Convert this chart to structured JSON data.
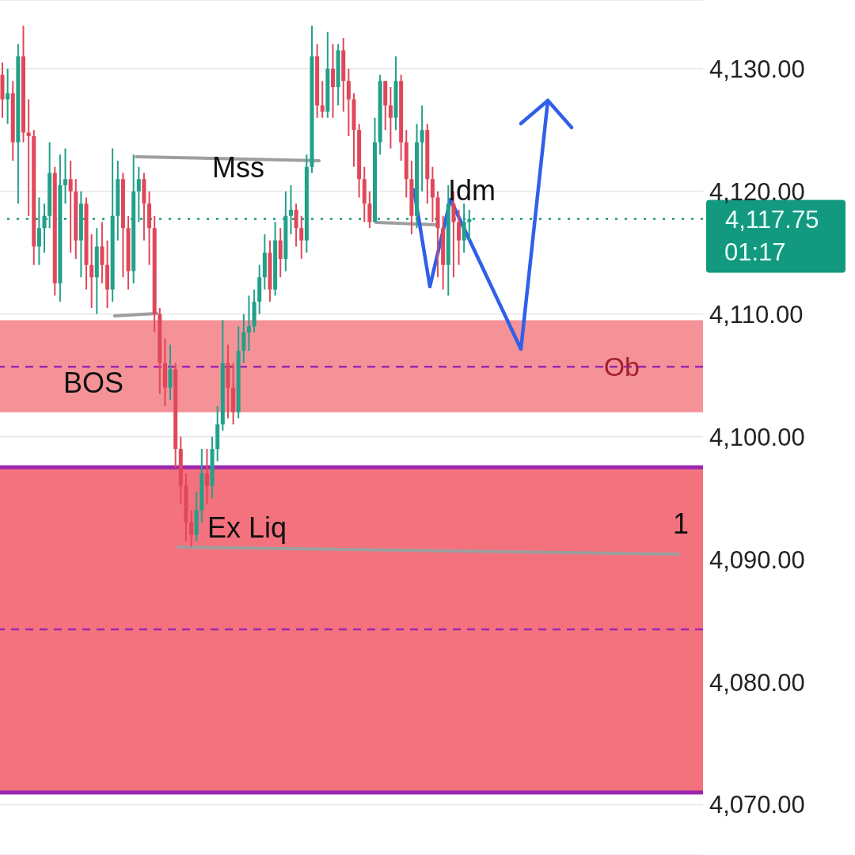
{
  "chart_data": {
    "type": "candlestick",
    "categories": [
      null,
      null,
      null,
      null,
      null,
      null,
      null,
      null,
      null,
      null,
      null,
      null,
      null,
      null,
      null,
      null,
      null,
      null,
      null,
      null,
      null,
      null,
      null,
      null,
      null,
      null,
      null,
      null,
      null,
      null,
      null,
      null,
      null,
      null,
      null,
      null,
      null,
      null,
      null,
      null,
      null,
      null,
      null,
      null,
      null,
      null,
      null,
      null,
      null,
      null,
      null,
      null,
      null,
      null,
      null,
      null,
      null,
      null,
      null,
      null,
      null,
      null,
      null,
      null,
      null,
      null,
      null,
      null,
      null,
      null,
      null,
      null,
      null,
      null,
      null,
      null,
      null,
      null,
      null,
      null,
      null,
      null,
      null,
      null,
      null,
      null,
      null,
      null,
      null,
      null,
      null,
      null,
      null,
      null,
      null,
      null,
      null,
      null,
      null,
      null,
      null,
      null,
      null,
      null,
      null,
      null,
      null,
      null,
      null,
      null,
      null,
      null,
      null,
      null,
      null,
      null,
      null,
      null,
      null,
      null,
      null,
      null,
      null,
      null,
      null,
      null,
      null,
      null,
      null,
      null,
      null,
      null,
      null,
      null
    ],
    "tick_labels": "y",
    "ohlc": [
      [
        4129.5,
        4130.5,
        4126,
        4127.5
      ],
      [
        4127.5,
        4130,
        4125.5,
        4128
      ],
      [
        4128,
        4129,
        4122.5,
        4124
      ],
      [
        4124,
        4132,
        4119,
        4131
      ],
      [
        4131,
        4133.5,
        4124,
        4124.8
      ],
      [
        4124.8,
        4127.5,
        4118,
        4124.5
      ],
      [
        4124.5,
        4125,
        4114,
        4115.5
      ],
      [
        4115.5,
        4119.5,
        4114,
        4117
      ],
      [
        4117,
        4119,
        4115,
        4118
      ],
      [
        4118,
        4124,
        4117,
        4121.5
      ],
      [
        4121.5,
        4122,
        4111.5,
        4112.5
      ],
      [
        4112.5,
        4123,
        4111,
        4120.5
      ],
      [
        4120.5,
        4123.5,
        4119,
        4121
      ],
      [
        4121,
        4122.5,
        4115,
        4120
      ],
      [
        4120,
        4121,
        4114.5,
        4116
      ],
      [
        4116,
        4120,
        4113,
        4119
      ],
      [
        4119,
        4119.5,
        4112,
        4114
      ],
      [
        4114,
        4116.5,
        4110.5,
        4113
      ],
      [
        4113,
        4117,
        4110,
        4115.5
      ],
      [
        4115.5,
        4117.5,
        4112.5,
        4114
      ],
      [
        4114,
        4116,
        4110.5,
        4112
      ],
      [
        4112,
        4123.5,
        4111,
        4118
      ],
      [
        4118,
        4122.5,
        4116,
        4121
      ],
      [
        4121,
        4121.5,
        4113,
        4117
      ],
      [
        4117,
        4118,
        4112,
        4113.5
      ],
      [
        4113.5,
        4123,
        4112.5,
        4120
      ],
      [
        4120,
        4122,
        4117.5,
        4121
      ],
      [
        4121,
        4121.5,
        4116,
        4119
      ],
      [
        4119,
        4120,
        4114,
        4117
      ],
      [
        4117,
        4118,
        4108.5,
        4110
      ],
      [
        4110,
        4110.5,
        4103.5,
        4106
      ],
      [
        4106,
        4108,
        4102.5,
        4104
      ],
      [
        4104,
        4107.5,
        4103,
        4105.5
      ],
      [
        4105.5,
        4106,
        4097.5,
        4099
      ],
      [
        4099,
        4100,
        4094.5,
        4096
      ],
      [
        4096,
        4097,
        4091.5,
        4093
      ],
      [
        4093,
        4094,
        4091,
        4092
      ],
      [
        4092,
        4095.5,
        4091.5,
        4094
      ],
      [
        4094,
        4099,
        4093,
        4097
      ],
      [
        4097,
        4099,
        4094.5,
        4096
      ],
      [
        4096,
        4100,
        4095,
        4099
      ],
      [
        4099,
        4102.5,
        4098,
        4101
      ],
      [
        4101,
        4109.5,
        4100.5,
        4106
      ],
      [
        4106,
        4107.5,
        4101.5,
        4104
      ],
      [
        4104,
        4106,
        4101,
        4102
      ],
      [
        4102,
        4109,
        4101.5,
        4107
      ],
      [
        4107,
        4110,
        4106,
        4108.5
      ],
      [
        4108.5,
        4111.5,
        4107,
        4109
      ],
      [
        4109,
        4112,
        4108.5,
        4111
      ],
      [
        4111,
        4114,
        4110,
        4113
      ],
      [
        4113,
        4116.5,
        4112,
        4115
      ],
      [
        4115,
        4116,
        4111,
        4112
      ],
      [
        4112,
        4117.5,
        4111.5,
        4116
      ],
      [
        4116,
        4117,
        4113,
        4114.5
      ],
      [
        4114.5,
        4120,
        4113.5,
        4118
      ],
      [
        4118,
        4120.5,
        4116.5,
        4118.5
      ],
      [
        4118.5,
        4119,
        4115.5,
        4117
      ],
      [
        4117,
        4118,
        4114.5,
        4116
      ],
      [
        4116,
        4123,
        4115,
        4122
      ],
      [
        4122,
        4133.5,
        4121.5,
        4131
      ],
      [
        4131,
        4132,
        4126,
        4127
      ],
      [
        4127,
        4129,
        4126,
        4126.5
      ],
      [
        4126.5,
        4133,
        4126,
        4130
      ],
      [
        4130,
        4132,
        4126,
        4128.5
      ],
      [
        4128.5,
        4132,
        4127,
        4131.5
      ],
      [
        4131.5,
        4132.5,
        4126.5,
        4129
      ],
      [
        4129,
        4130,
        4124.5,
        4127.5
      ],
      [
        4127.5,
        4128,
        4122,
        4125
      ],
      [
        4125,
        4125.5,
        4119.5,
        4121
      ],
      [
        4121,
        4122,
        4117.5,
        4119
      ],
      [
        4119,
        4120,
        4117,
        4117.5
      ],
      [
        4117.5,
        4126,
        4117.5,
        4124
      ],
      [
        4124,
        4129.5,
        4123,
        4129
      ],
      [
        4129,
        4129,
        4125,
        4127
      ],
      [
        4127,
        4128.5,
        4123.5,
        4126
      ],
      [
        4126,
        4131,
        4125,
        4129
      ],
      [
        4129,
        4129.5,
        4122.5,
        4124
      ],
      [
        4124,
        4125,
        4119.5,
        4121
      ],
      [
        4121,
        4122.5,
        4116.5,
        4118
      ],
      [
        4118,
        4125.5,
        4117,
        4124
      ],
      [
        4124,
        4127,
        4120,
        4125
      ],
      [
        4125,
        4125.5,
        4119,
        4121
      ],
      [
        4121,
        4122,
        4117.5,
        4119.5
      ],
      [
        4119.5,
        4120,
        4113,
        4117
      ],
      [
        4117,
        4118,
        4112,
        4114
      ],
      [
        4114,
        4120.5,
        4111.5,
        4119
      ],
      [
        4119,
        4120,
        4113,
        4117.5
      ],
      [
        4117.5,
        4118.5,
        4114,
        4116
      ],
      [
        4116,
        4119,
        4115,
        4117.5
      ],
      [
        4117.5,
        4118.5,
        4116,
        4117.75
      ],
      null,
      null,
      null,
      null,
      null,
      null,
      null,
      null,
      null,
      null,
      null,
      null,
      null,
      null,
      null,
      null,
      null,
      null,
      null,
      null,
      null,
      null,
      null,
      null,
      null,
      null,
      null,
      null,
      null,
      null,
      null,
      null,
      null,
      null,
      null,
      null,
      null,
      null,
      null,
      null,
      null,
      null,
      null,
      null
    ],
    "colors": [
      "#e0485a",
      "#22a08a",
      "#e0485a",
      "#22a08a",
      "#e0485a",
      "#e0485a",
      "#e0485a",
      "#22a08a",
      "#22a08a",
      "#22a08a",
      "#e0485a",
      "#22a08a",
      "#22a08a",
      "#e0485a",
      "#e0485a",
      "#22a08a",
      "#e0485a",
      "#e0485a",
      "#22a08a",
      "#e0485a",
      "#e0485a",
      "#22a08a",
      "#22a08a",
      "#e0485a",
      "#e0485a",
      "#22a08a",
      "#22a08a",
      "#e0485a",
      "#e0485a",
      "#e0485a",
      "#e0485a",
      "#e0485a",
      "#22a08a",
      "#e0485a",
      "#e0485a",
      "#e0485a",
      "#e0485a",
      "#22a08a",
      "#22a08a",
      "#e0485a",
      "#22a08a",
      "#22a08a",
      "#22a08a",
      "#e0485a",
      "#e0485a",
      "#22a08a",
      "#22a08a",
      "#22a08a",
      "#22a08a",
      "#22a08a",
      "#22a08a",
      "#e0485a",
      "#22a08a",
      "#e0485a",
      "#22a08a",
      "#22a08a",
      "#e0485a",
      "#e0485a",
      "#22a08a",
      "#22a08a",
      "#e0485a",
      "#e0485a",
      "#22a08a",
      "#e0485a",
      "#22a08a",
      "#e0485a",
      "#e0485a",
      "#e0485a",
      "#e0485a",
      "#e0485a",
      "#e0485a",
      "#22a08a",
      "#22a08a",
      "#e0485a",
      "#e0485a",
      "#22a08a",
      "#e0485a",
      "#e0485a",
      "#e0485a",
      "#22a08a",
      "#22a08a",
      "#e0485a",
      "#e0485a",
      "#e0485a",
      "#e0485a",
      "#22a08a",
      "#e0485a",
      "#e0485a",
      "#22a08a",
      "#22a08a",
      null,
      null,
      null,
      null,
      null,
      null,
      null,
      null,
      null,
      null,
      null,
      null,
      null,
      null,
      null,
      null,
      null,
      null,
      null,
      null,
      null,
      null,
      null,
      null,
      null,
      null,
      null,
      null,
      null,
      null,
      null,
      null,
      null,
      null,
      null,
      null,
      null,
      null,
      null,
      null,
      null,
      null,
      null,
      null
    ],
    "bands": [
      {
        "axis": "y",
        "from": 4102,
        "to": 4109.5,
        "label": "Ob",
        "color": "#f4898f"
      },
      {
        "axis": "y",
        "from": 4071,
        "to": 4097.5,
        "color": "#f26672"
      }
    ],
    "ref_lines": [
      {
        "axis": "y",
        "value": 4097.5,
        "color": "#9c27b0",
        "line_style": "solid"
      },
      {
        "axis": "y",
        "value": 4071,
        "color": "#9c27b0",
        "line_style": "solid"
      },
      {
        "axis": "y",
        "value": 4105.7,
        "color": "#9c27b0",
        "line_style": "dashed"
      },
      {
        "axis": "y",
        "value": 4084.3,
        "color": "#9c27b0",
        "line_style": "dashed"
      },
      {
        "axis": "y",
        "value": 4117.75,
        "label": "4,117.75",
        "color": "#12997f",
        "line_style": "dotted"
      }
    ],
    "annotations": [
      "Mss",
      "BOS",
      "Idm",
      "Ex Liq",
      "1",
      "01:17"
    ],
    "ylim": [
      4065.9,
      4135.6
    ],
    "yticks": [
      {
        "value": 4070,
        "label": "4,070.00"
      },
      {
        "value": 4080,
        "label": "4,080.00"
      },
      {
        "value": 4090,
        "label": "4,090.00"
      },
      {
        "value": 4100,
        "label": "4,100.00"
      },
      {
        "value": 4110,
        "label": "4,110.00"
      },
      {
        "value": 4120,
        "label": "4,120.00"
      },
      {
        "value": 4130,
        "label": "4,130.00"
      }
    ],
    "grid": "y"
  }
}
